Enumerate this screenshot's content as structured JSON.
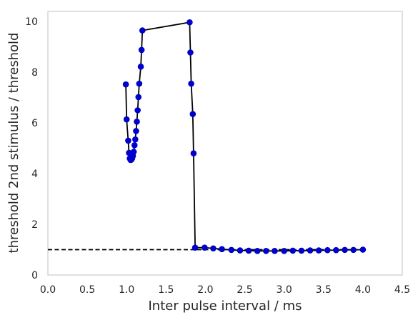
{
  "chart_data": {
    "type": "line",
    "title": "",
    "xlabel": "Inter pulse interval / ms",
    "ylabel": "threshold 2nd stimulus / threshold",
    "xlim": [
      0,
      4.5
    ],
    "ylim": [
      0,
      10.4
    ],
    "xticks": [
      "0.0",
      "0.5",
      "1.0",
      "1.5",
      "2.0",
      "2.5",
      "3.0",
      "3.5",
      "4.0",
      "4.5"
    ],
    "yticks": [
      "0",
      "2",
      "4",
      "6",
      "8",
      "10"
    ],
    "grid": false,
    "legend": "none",
    "series": [
      {
        "color": "#000000",
        "marker_color": "#0000cd",
        "marker": "circle",
        "points": [
          [
            0.99,
            7.52
          ],
          [
            1.0,
            6.14
          ],
          [
            1.02,
            5.3
          ],
          [
            1.03,
            4.82
          ],
          [
            1.04,
            4.6
          ],
          [
            1.05,
            4.54
          ],
          [
            1.06,
            4.55
          ],
          [
            1.07,
            4.6
          ],
          [
            1.08,
            4.7
          ],
          [
            1.09,
            4.86
          ],
          [
            1.1,
            5.12
          ],
          [
            1.11,
            5.35
          ],
          [
            1.12,
            5.68
          ],
          [
            1.13,
            6.05
          ],
          [
            1.14,
            6.5
          ],
          [
            1.15,
            7.02
          ],
          [
            1.16,
            7.55
          ],
          [
            1.18,
            8.22
          ],
          [
            1.19,
            8.88
          ],
          [
            1.2,
            9.65
          ],
          [
            1.8,
            9.97
          ],
          [
            1.81,
            8.78
          ],
          [
            1.82,
            7.55
          ],
          [
            1.84,
            6.35
          ],
          [
            1.85,
            4.8
          ],
          [
            1.87,
            1.08
          ],
          [
            1.99,
            1.08
          ],
          [
            2.1,
            1.05
          ],
          [
            2.21,
            1.02
          ],
          [
            2.33,
            0.99
          ],
          [
            2.44,
            0.97
          ],
          [
            2.55,
            0.96
          ],
          [
            2.66,
            0.95
          ],
          [
            2.77,
            0.95
          ],
          [
            2.88,
            0.95
          ],
          [
            3.0,
            0.95
          ],
          [
            3.11,
            0.96
          ],
          [
            3.22,
            0.96
          ],
          [
            3.33,
            0.97
          ],
          [
            3.44,
            0.97
          ],
          [
            3.55,
            0.98
          ],
          [
            3.66,
            0.98
          ],
          [
            3.77,
            0.99
          ],
          [
            3.88,
            0.99
          ],
          [
            4.0,
            1.0
          ]
        ]
      }
    ],
    "reference_line": {
      "y": 1.0,
      "x_from": 0.0,
      "x_to": 4.0,
      "style": "dashed",
      "color": "#000000"
    }
  }
}
